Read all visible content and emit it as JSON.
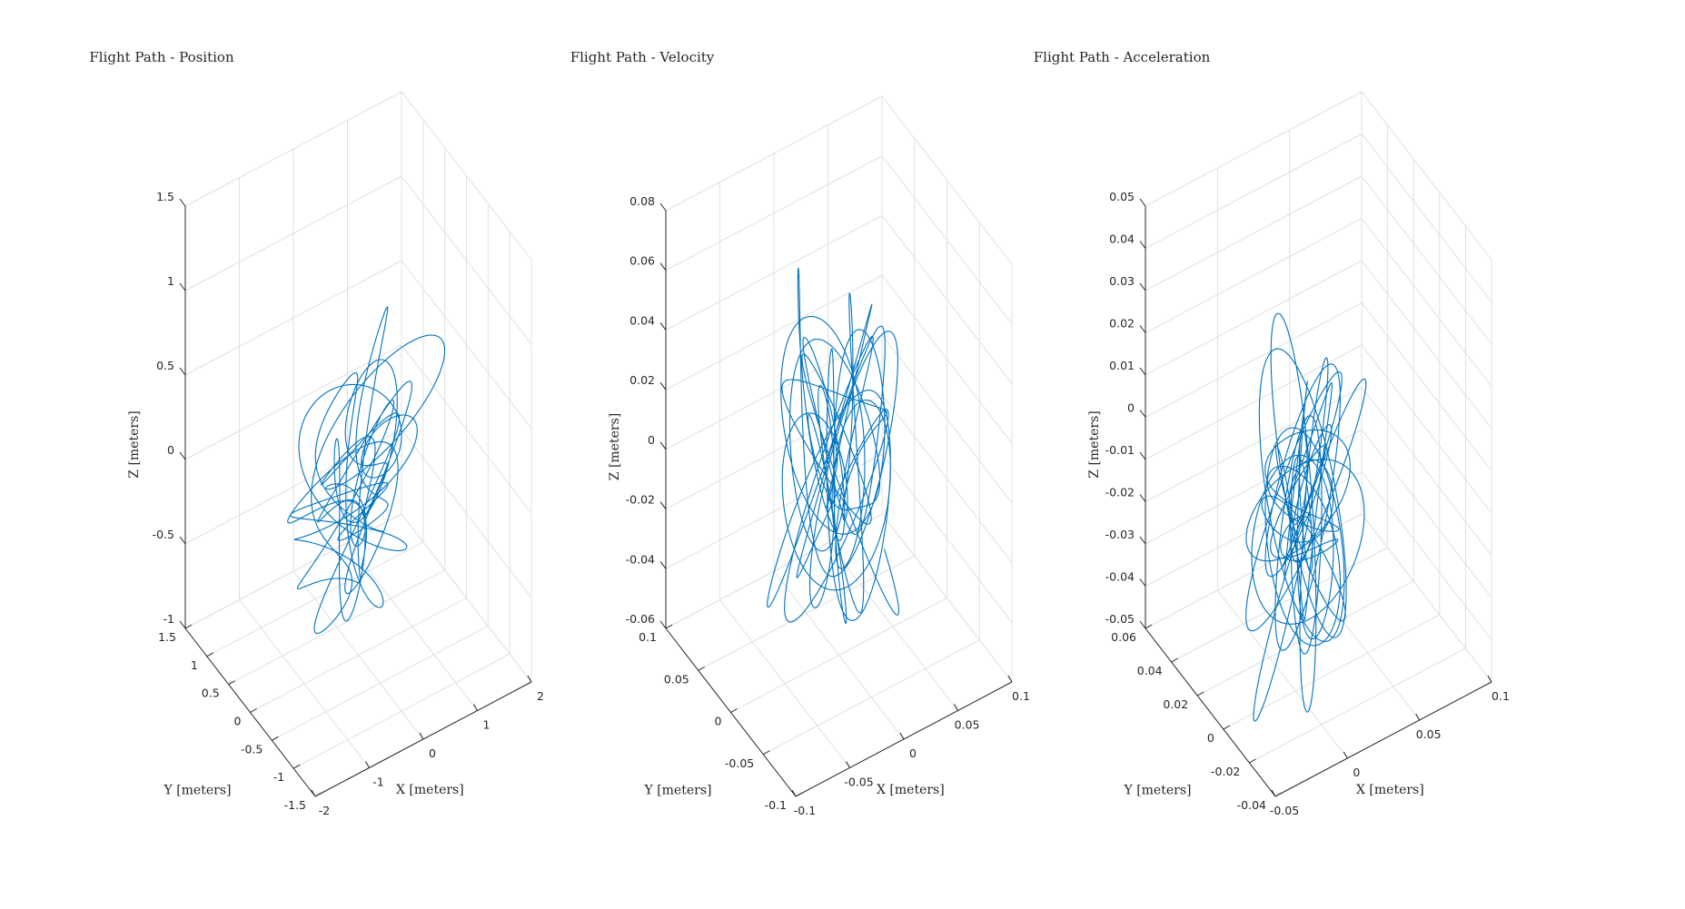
{
  "chart_data": [
    {
      "type": "line3d",
      "title": "Flight Path - Position",
      "xlabel": "X [meters]",
      "ylabel": "Y [meters]",
      "zlabel": "Z [meters]",
      "xlim": [
        -2,
        2
      ],
      "ylim": [
        -1.5,
        1.5
      ],
      "zlim": [
        -1,
        1.5
      ],
      "xticks": [
        -2,
        -1,
        0,
        1,
        2
      ],
      "yticks": [
        -1.5,
        -1,
        -0.5,
        0,
        0.5,
        1,
        1.5
      ],
      "zticks": [
        -1,
        -0.5,
        0,
        0.5,
        1,
        1.5
      ],
      "grid": true,
      "series": [
        {
          "color": "#0072bd",
          "trajectory": {
            "amplitude": [
              0.85,
              0.65,
              0.8
            ],
            "center": [
              0,
              0,
              0
            ],
            "seed": 1
          }
        }
      ]
    },
    {
      "type": "line3d",
      "title": "Flight Path - Velocity",
      "xlabel": "X [meters]",
      "ylabel": "Y [meters]",
      "zlabel": "Z [meters]",
      "xlim": [
        -0.1,
        0.1
      ],
      "ylim": [
        -0.1,
        0.1
      ],
      "zlim": [
        -0.06,
        0.08
      ],
      "xticks": [
        -0.1,
        -0.05,
        0,
        0.05,
        0.1
      ],
      "yticks": [
        -0.1,
        -0.05,
        0,
        0.05,
        0.1
      ],
      "zticks": [
        -0.06,
        -0.04,
        -0.02,
        0,
        0.02,
        0.04,
        0.06,
        0.08
      ],
      "grid": true,
      "series": [
        {
          "color": "#0072bd",
          "trajectory": {
            "amplitude": [
              0.045,
              0.045,
              0.045
            ],
            "center": [
              0,
              0,
              0.005
            ],
            "seed": 2
          }
        }
      ]
    },
    {
      "type": "line3d",
      "title": "Flight Path - Acceleration",
      "xlabel": "X [meters]",
      "ylabel": "Y [meters]",
      "zlabel": "Z [meters]",
      "xlim": [
        -0.05,
        0.1
      ],
      "ylim": [
        -0.04,
        0.06
      ],
      "zlim": [
        -0.05,
        0.05
      ],
      "xticks": [
        -0.05,
        0,
        0.05,
        0.1
      ],
      "yticks": [
        -0.04,
        -0.02,
        0,
        0.02,
        0.04,
        0.06
      ],
      "zticks": [
        -0.05,
        -0.04,
        -0.03,
        -0.02,
        -0.01,
        0,
        0.01,
        0.02,
        0.03,
        0.04,
        0.05
      ],
      "grid": true,
      "series": [
        {
          "color": "#0072bd",
          "trajectory": {
            "amplitude": [
              0.028,
              0.022,
              0.03
            ],
            "center": [
              0.01,
              0.005,
              -0.012
            ],
            "seed": 3
          }
        }
      ]
    }
  ]
}
